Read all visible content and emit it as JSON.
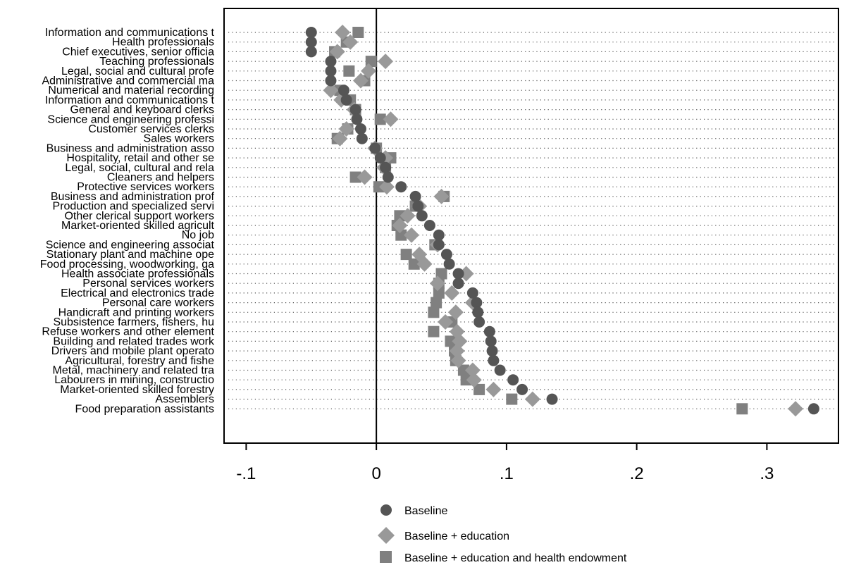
{
  "chart_data": {
    "type": "scatter",
    "title": "",
    "xlabel": "",
    "ylabel": "",
    "xlim": [
      -0.117,
      0.355
    ],
    "xticks": [
      -0.1,
      0,
      0.1,
      0.2,
      0.3
    ],
    "xtick_labels": [
      "-.1",
      "0",
      ".1",
      ".2",
      ".3"
    ],
    "reference_line_x": 0,
    "grid": "dotted horizontal lines per category",
    "legend_position": "bottom",
    "categories": [
      "Information and communications t",
      "Health professionals",
      "Chief executives, senior officia",
      "Teaching professionals",
      "Legal, social and cultural profe",
      "Administrative and commercial ma",
      "Numerical and material recording",
      "Information and communications t",
      "General and keyboard clerks",
      "Science and engineering professi",
      "Customer services clerks",
      "Sales workers",
      "Business and administration asso",
      "Hospitality, retail and other se",
      "Legal, social, cultural and rela",
      "Cleaners and helpers",
      "Protective services workers",
      "Business and administration prof",
      "Production and specialized servi",
      "Other clerical support workers",
      "Market-oriented skilled agricult",
      "No job",
      "Science and engineering associat",
      "Stationary plant and machine ope",
      "Food processing, woodworking, ga",
      "Health associate professionals",
      "Personal services workers",
      "Electrical and electronics trade",
      "Personal care workers",
      "Handicraft and printing workers",
      "Subsistence farmers, fishers, hu",
      "Refuse workers and other element",
      "Building and related trades work",
      "Drivers and mobile plant operato",
      "Agricultural, forestry and fishe",
      "Metal, machinery and related tra",
      "Labourers in mining, constructio",
      "Market-oriented skilled forestry",
      "Assemblers",
      "Food preparation assistants"
    ],
    "series": [
      {
        "name": "Baseline",
        "marker": "circle",
        "color": "#555555",
        "values": [
          -0.05,
          -0.05,
          -0.05,
          -0.035,
          -0.035,
          -0.035,
          -0.025,
          -0.023,
          -0.016,
          -0.015,
          -0.012,
          -0.011,
          -0.001,
          0.003,
          0.007,
          0.009,
          0.019,
          0.03,
          0.032,
          0.035,
          0.041,
          0.048,
          0.048,
          0.054,
          0.056,
          0.063,
          0.063,
          0.074,
          0.077,
          0.078,
          0.079,
          0.087,
          0.088,
          0.089,
          0.09,
          0.095,
          0.105,
          0.112,
          0.135,
          0.336
        ]
      },
      {
        "name": "Baseline + education",
        "marker": "diamond",
        "color": "#999999",
        "values": [
          -0.026,
          -0.02,
          -0.03,
          0.007,
          -0.006,
          -0.012,
          -0.035,
          -0.027,
          -0.017,
          0.011,
          -0.023,
          -0.028,
          -0.001,
          0.007,
          0.006,
          -0.009,
          0.008,
          0.05,
          0.033,
          0.024,
          0.018,
          0.027,
          0.047,
          0.033,
          0.037,
          0.069,
          0.047,
          0.058,
          0.074,
          0.061,
          0.053,
          0.062,
          0.064,
          0.062,
          0.063,
          0.074,
          0.075,
          0.09,
          0.12,
          0.322
        ]
      },
      {
        "name": "Baseline + education and health endowment",
        "marker": "square",
        "color": "#808080",
        "values": [
          -0.014,
          -0.023,
          -0.032,
          -0.004,
          -0.021,
          -0.009,
          -0.028,
          -0.02,
          -0.016,
          0.003,
          -0.022,
          -0.03,
          0.0,
          0.011,
          0.007,
          -0.016,
          0.002,
          0.052,
          0.03,
          0.018,
          0.016,
          0.019,
          0.045,
          0.023,
          0.029,
          0.05,
          0.048,
          0.048,
          0.046,
          0.044,
          0.058,
          0.044,
          0.057,
          0.06,
          0.061,
          0.067,
          0.069,
          0.079,
          0.104,
          0.281
        ]
      }
    ]
  }
}
